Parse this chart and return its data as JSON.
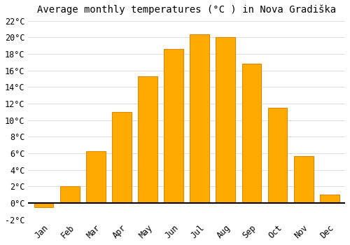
{
  "months": [
    "Jan",
    "Feb",
    "Mar",
    "Apr",
    "May",
    "Jun",
    "Jul",
    "Aug",
    "Sep",
    "Oct",
    "Nov",
    "Dec"
  ],
  "temperatures": [
    -0.5,
    2.0,
    6.3,
    11.0,
    15.3,
    18.6,
    20.4,
    20.0,
    16.8,
    11.5,
    5.7,
    1.0
  ],
  "bar_color": "#FFAA00",
  "bar_edge_color": "#E08800",
  "title": "Average monthly temperatures (°C ) in Nova Gradiška",
  "ylim": [
    -2,
    22
  ],
  "yticks": [
    -2,
    0,
    2,
    4,
    6,
    8,
    10,
    12,
    14,
    16,
    18,
    20,
    22
  ],
  "grid_color": "#dddddd",
  "background_color": "#ffffff",
  "title_fontsize": 10,
  "tick_fontsize": 8.5,
  "bar_width": 0.75
}
